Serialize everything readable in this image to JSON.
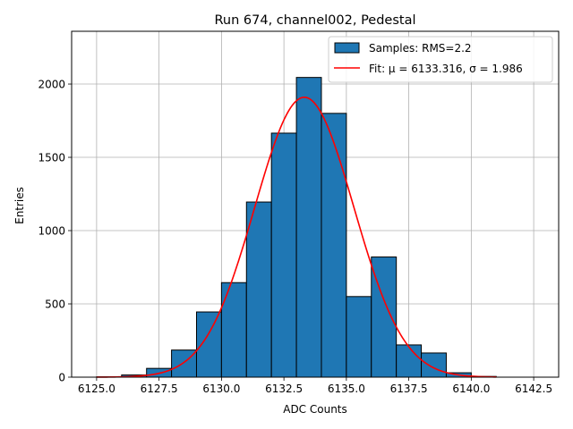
{
  "chart_data": {
    "type": "bar",
    "title": "Run 674, channel002, Pedestal",
    "xlabel": "ADC Counts",
    "ylabel": "Entries",
    "xlim": [
      6124.0,
      6143.5
    ],
    "ylim": [
      0,
      2360
    ],
    "grid": true,
    "legend_position": "top-right",
    "x_ticks": [
      6125.0,
      6127.5,
      6130.0,
      6132.5,
      6135.0,
      6137.5,
      6140.0,
      6142.5
    ],
    "x_tick_labels": [
      "6125.0",
      "6127.5",
      "6130.0",
      "6132.5",
      "6135.0",
      "6137.5",
      "6140.0",
      "6142.5"
    ],
    "y_ticks": [
      0,
      500,
      1000,
      1500,
      2000
    ],
    "y_tick_labels": [
      "0",
      "500",
      "1000",
      "1500",
      "2000"
    ],
    "histogram": {
      "name": "Samples: RMS=2.2",
      "color": "#1f77b4",
      "edge_color": "#000000",
      "bin_edges": [
        6125,
        6126,
        6127,
        6128,
        6129,
        6130,
        6131,
        6132,
        6133,
        6134,
        6135,
        6136,
        6137,
        6138,
        6139,
        6140,
        6141,
        6142
      ],
      "counts": [
        2,
        15,
        60,
        185,
        445,
        645,
        1195,
        1665,
        2045,
        1800,
        550,
        820,
        220,
        165,
        30,
        5,
        0
      ]
    },
    "fit": {
      "name": "Fit: μ = 6133.316, σ = 1.986",
      "color": "#ff0000",
      "mu": 6133.316,
      "sigma": 1.986,
      "amplitude": 1910,
      "x_range": [
        6125.0,
        6141.0
      ]
    }
  }
}
